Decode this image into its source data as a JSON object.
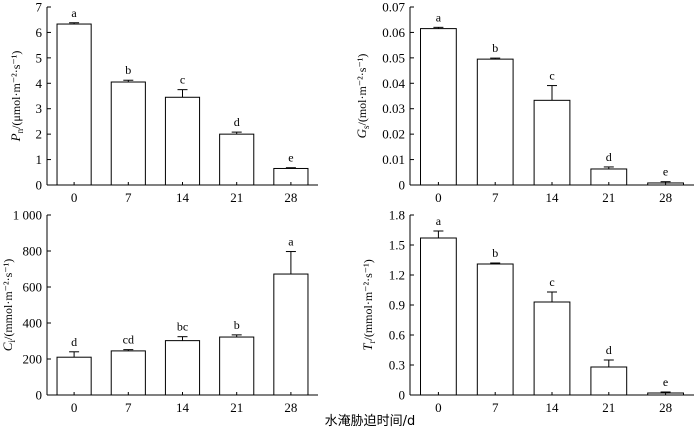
{
  "figure": {
    "x_axis_title": "水淹胁迫时间/d"
  },
  "chart_data": [
    {
      "type": "bar",
      "id": "pn",
      "ylabel_main": "P",
      "ylabel_sub": "n",
      "ylabel_unit": "/(μmol·m⁻²·s⁻¹)",
      "categories": [
        "0",
        "7",
        "14",
        "21",
        "28"
      ],
      "values": [
        6.33,
        4.05,
        3.45,
        2.0,
        0.65
      ],
      "errors": [
        0.05,
        0.07,
        0.3,
        0.08,
        0.03
      ],
      "letters": [
        "a",
        "b",
        "c",
        "d",
        "e"
      ],
      "ylim": [
        0,
        7
      ],
      "yticks": [
        0,
        1,
        2,
        3,
        4,
        5,
        6,
        7
      ],
      "ytick_labels": [
        "0",
        "1",
        "2",
        "3",
        "4",
        "5",
        "6",
        "7"
      ]
    },
    {
      "type": "bar",
      "id": "gs",
      "ylabel_main": "G",
      "ylabel_sub": "s",
      "ylabel_unit": "/(mol·m⁻²·s⁻¹)",
      "categories": [
        "0",
        "7",
        "14",
        "21",
        "28"
      ],
      "values": [
        0.0615,
        0.0495,
        0.0333,
        0.0063,
        0.0008
      ],
      "errors": [
        0.0005,
        0.0004,
        0.0058,
        0.0008,
        0.0005
      ],
      "letters": [
        "a",
        "b",
        "c",
        "d",
        "e"
      ],
      "ylim": [
        0,
        0.07
      ],
      "yticks": [
        0,
        0.01,
        0.02,
        0.03,
        0.04,
        0.05,
        0.06,
        0.07
      ],
      "ytick_labels": [
        "0",
        "0.01",
        "0.02",
        "0.03",
        "0.04",
        "0.05",
        "0.06",
        "0.07"
      ]
    },
    {
      "type": "bar",
      "id": "ci",
      "ylabel_main": "C",
      "ylabel_sub": "i",
      "ylabel_unit": "/(mmol·m⁻²·s⁻¹)",
      "categories": [
        "0",
        "7",
        "14",
        "21",
        "28"
      ],
      "values": [
        210,
        245,
        302,
        322,
        672
      ],
      "errors": [
        30,
        7,
        22,
        12,
        125
      ],
      "letters": [
        "d",
        "cd",
        "bc",
        "b",
        "a"
      ],
      "ylim": [
        0,
        1000
      ],
      "yticks": [
        0,
        200,
        400,
        600,
        800,
        1000
      ],
      "ytick_labels": [
        "0",
        "200",
        "400",
        "600",
        "800",
        "1 000"
      ]
    },
    {
      "type": "bar",
      "id": "tr",
      "ylabel_main": "T",
      "ylabel_sub": "r",
      "ylabel_unit": "/(mmol·m⁻²·s⁻¹)",
      "categories": [
        "0",
        "7",
        "14",
        "21",
        "28"
      ],
      "values": [
        1.57,
        1.31,
        0.93,
        0.28,
        0.02
      ],
      "errors": [
        0.07,
        0.01,
        0.1,
        0.07,
        0.01
      ],
      "letters": [
        "a",
        "b",
        "c",
        "d",
        "e"
      ],
      "ylim": [
        0,
        1.8
      ],
      "yticks": [
        0,
        0.3,
        0.6,
        0.9,
        1.2,
        1.5,
        1.8
      ],
      "ytick_labels": [
        "0",
        "0.3",
        "0.6",
        "0.9",
        "1.2",
        "1.5",
        "1.8"
      ]
    }
  ]
}
